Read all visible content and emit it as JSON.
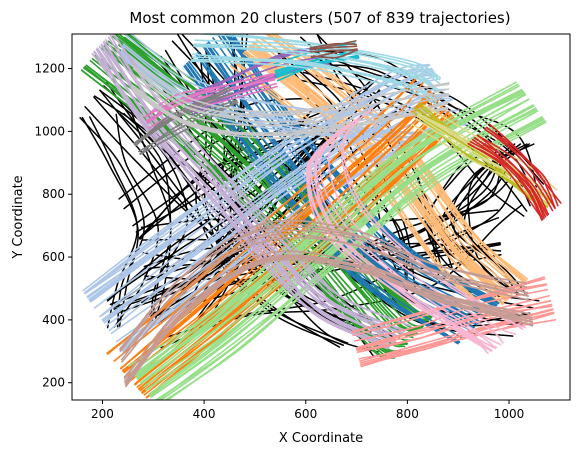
{
  "chart_data": {
    "type": "line",
    "title": "Most common 20 clusters (507 of 839 trajectories)",
    "xlabel": "X Coordinate",
    "ylabel": "Y Coordinate",
    "xlim": [
      140,
      1120
    ],
    "ylim": [
      145,
      1310
    ],
    "xticks": [
      200,
      400,
      600,
      800,
      1000
    ],
    "yticks": [
      200,
      400,
      600,
      800,
      1000,
      1200
    ],
    "grid": false,
    "legend": "none",
    "unclustered_color": "#000000",
    "clusters": [
      {
        "color": "#2ca02c",
        "path": [
          [
            205,
            1275
          ],
          [
            420,
            1000
          ],
          [
            600,
            720
          ],
          [
            770,
            400
          ],
          [
            820,
            360
          ]
        ],
        "count": 30,
        "width": 70
      },
      {
        "color": "#2ca02c",
        "path": [
          [
            230,
            1270
          ],
          [
            350,
            1120
          ],
          [
            440,
            1000
          ]
        ],
        "count": 6,
        "width": 30
      },
      {
        "color": "#1f77b4",
        "path": [
          [
            400,
            1270
          ],
          [
            520,
            1000
          ],
          [
            640,
            760
          ],
          [
            760,
            560
          ],
          [
            940,
            390
          ]
        ],
        "count": 26,
        "width": 60
      },
      {
        "color": "#ffbb78",
        "path": [
          [
            490,
            1270
          ],
          [
            640,
            1080
          ],
          [
            780,
            870
          ],
          [
            900,
            620
          ],
          [
            1000,
            470
          ]
        ],
        "count": 26,
        "width": 55
      },
      {
        "color": "#aec7e8",
        "path": [
          [
            200,
            400
          ],
          [
            400,
            640
          ],
          [
            600,
            880
          ],
          [
            800,
            1080
          ],
          [
            880,
            1120
          ]
        ],
        "count": 30,
        "width": 75
      },
      {
        "color": "#aec7e8",
        "path": [
          [
            240,
            1270
          ],
          [
            380,
            1110
          ],
          [
            600,
            1030
          ],
          [
            830,
            1000
          ]
        ],
        "count": 10,
        "width": 30
      },
      {
        "color": "#ff7f0e",
        "path": [
          [
            250,
            220
          ],
          [
            430,
            460
          ],
          [
            640,
            760
          ],
          [
            800,
            1000
          ],
          [
            860,
            1100
          ]
        ],
        "count": 28,
        "width": 60
      },
      {
        "color": "#98df8a",
        "path": [
          [
            280,
            190
          ],
          [
            440,
            380
          ],
          [
            620,
            620
          ],
          [
            820,
            900
          ],
          [
            1040,
            1100
          ]
        ],
        "count": 28,
        "width": 55
      },
      {
        "color": "#c5b0d5",
        "path": [
          [
            200,
            1280
          ],
          [
            300,
            1040
          ],
          [
            420,
            820
          ],
          [
            540,
            600
          ],
          [
            640,
            440
          ],
          [
            780,
            340
          ]
        ],
        "count": 18,
        "width": 35
      },
      {
        "color": "#9467bd",
        "path": [
          [
            370,
            1080
          ],
          [
            460,
            1150
          ],
          [
            560,
            1210
          ],
          [
            640,
            1240
          ]
        ],
        "count": 8,
        "width": 20
      },
      {
        "color": "#e377c2",
        "path": [
          [
            290,
            1020
          ],
          [
            350,
            1080
          ],
          [
            440,
            1120
          ],
          [
            540,
            1160
          ]
        ],
        "count": 8,
        "width": 20
      },
      {
        "color": "#17becf",
        "path": [
          [
            540,
            1190
          ],
          [
            620,
            1230
          ],
          [
            700,
            1260
          ]
        ],
        "count": 8,
        "width": 18
      },
      {
        "color": "#9edae5",
        "path": [
          [
            380,
            1270
          ],
          [
            600,
            1250
          ],
          [
            800,
            1180
          ],
          [
            860,
            1130
          ]
        ],
        "count": 12,
        "width": 28
      },
      {
        "color": "#8c564b",
        "path": [
          [
            610,
            1250
          ],
          [
            660,
            1260
          ],
          [
            700,
            1270
          ]
        ],
        "count": 6,
        "width": 10
      },
      {
        "color": "#7f7f7f",
        "path": [
          [
            270,
            940
          ],
          [
            330,
            1010
          ],
          [
            400,
            1070
          ],
          [
            460,
            1110
          ]
        ],
        "count": 8,
        "width": 18
      },
      {
        "color": "#c7c7c7",
        "path": [
          [
            260,
            1170
          ],
          [
            380,
            1050
          ],
          [
            560,
            1020
          ],
          [
            780,
            1080
          ],
          [
            880,
            1110
          ]
        ],
        "count": 10,
        "width": 30
      },
      {
        "color": "#bcbd22",
        "path": [
          [
            820,
            1080
          ],
          [
            920,
            960
          ],
          [
            1000,
            870
          ],
          [
            1080,
            770
          ]
        ],
        "count": 8,
        "width": 20
      },
      {
        "color": "#dbdb8d",
        "path": [
          [
            820,
            1050
          ],
          [
            940,
            940
          ],
          [
            1020,
            860
          ],
          [
            1080,
            780
          ]
        ],
        "count": 8,
        "width": 25
      },
      {
        "color": "#d62728",
        "path": [
          [
            940,
            990
          ],
          [
            1000,
            920
          ],
          [
            1050,
            830
          ],
          [
            1080,
            740
          ]
        ],
        "count": 12,
        "width": 25
      },
      {
        "color": "#ff9896",
        "path": [
          [
            700,
            310
          ],
          [
            820,
            360
          ],
          [
            940,
            420
          ],
          [
            1080,
            470
          ]
        ],
        "count": 16,
        "width": 40
      },
      {
        "color": "#f7b6d2",
        "path": [
          [
            700,
            1040
          ],
          [
            640,
            920
          ],
          [
            680,
            720
          ],
          [
            820,
            520
          ],
          [
            960,
            380
          ],
          [
            1000,
            340
          ]
        ],
        "count": 12,
        "width": 50
      },
      {
        "color": "#c49c94",
        "path": [
          [
            240,
            250
          ],
          [
            360,
            480
          ],
          [
            520,
            640
          ],
          [
            700,
            620
          ],
          [
            860,
            520
          ],
          [
            1040,
            450
          ]
        ],
        "count": 14,
        "width": 40
      }
    ]
  }
}
